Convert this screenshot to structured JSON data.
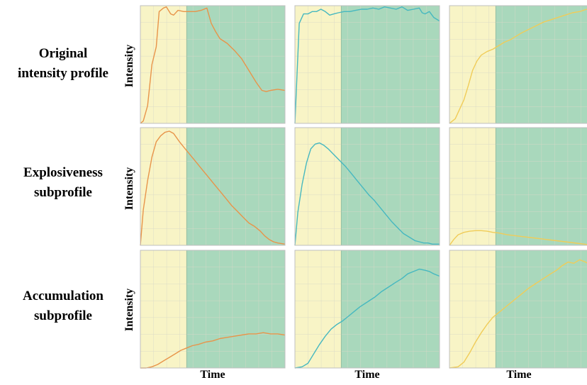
{
  "row_labels": [
    {
      "line1": "Original",
      "line2": "intensity profile"
    },
    {
      "line1": "Explosiveness",
      "line2": "subprofile"
    },
    {
      "line1": "Accumulation",
      "line2": "subprofile"
    }
  ],
  "ylabel": "Intensity",
  "xlabel": "Time",
  "colors": {
    "phase1_bg": "#f8f4c6",
    "phase2_bg": "#a9d8bc",
    "series": [
      "#e8944a",
      "#46b8c0",
      "#f0cc58"
    ],
    "frame": "#bfbfbf",
    "grid": "#d8d8c8"
  },
  "chart_data": [
    {
      "type": "line",
      "row": "Original intensity profile",
      "col": 1,
      "phase_boundary": 0.32,
      "x": [
        0,
        0.02,
        0.05,
        0.08,
        0.11,
        0.13,
        0.16,
        0.18,
        0.21,
        0.23,
        0.26,
        0.3,
        0.34,
        0.38,
        0.42,
        0.46,
        0.49,
        0.52,
        0.55,
        0.6,
        0.65,
        0.7,
        0.75,
        0.8,
        0.84,
        0.87,
        0.9,
        0.95,
        1
      ],
      "values": [
        0,
        0.02,
        0.15,
        0.5,
        0.65,
        0.95,
        0.98,
        0.99,
        0.93,
        0.92,
        0.96,
        0.95,
        0.95,
        0.95,
        0.96,
        0.98,
        0.85,
        0.78,
        0.72,
        0.68,
        0.62,
        0.55,
        0.45,
        0.35,
        0.28,
        0.27,
        0.28,
        0.29,
        0.28
      ],
      "ylim": [
        0,
        1
      ]
    },
    {
      "type": "line",
      "row": "Original intensity profile",
      "col": 2,
      "phase_boundary": 0.32,
      "x": [
        0,
        0.03,
        0.06,
        0.09,
        0.12,
        0.15,
        0.18,
        0.21,
        0.24,
        0.27,
        0.3,
        0.34,
        0.38,
        0.42,
        0.46,
        0.5,
        0.54,
        0.58,
        0.62,
        0.66,
        0.7,
        0.74,
        0.78,
        0.82,
        0.86,
        0.88,
        0.9,
        0.93,
        0.96,
        1
      ],
      "values": [
        0,
        0.85,
        0.93,
        0.93,
        0.95,
        0.95,
        0.97,
        0.95,
        0.92,
        0.93,
        0.94,
        0.95,
        0.95,
        0.96,
        0.97,
        0.97,
        0.98,
        0.97,
        0.99,
        0.98,
        0.97,
        0.99,
        0.96,
        0.97,
        0.98,
        0.94,
        0.93,
        0.95,
        0.9,
        0.87
      ],
      "ylim": [
        0,
        1
      ]
    },
    {
      "type": "line",
      "row": "Original intensity profile",
      "col": 3,
      "phase_boundary": 0.32,
      "x": [
        0,
        0.04,
        0.07,
        0.1,
        0.13,
        0.16,
        0.19,
        0.22,
        0.26,
        0.3,
        0.34,
        0.38,
        0.42,
        0.46,
        0.5,
        0.55,
        0.6,
        0.65,
        0.7,
        0.75,
        0.8,
        0.85,
        0.9,
        0.95,
        1
      ],
      "values": [
        0,
        0.04,
        0.12,
        0.2,
        0.32,
        0.45,
        0.53,
        0.58,
        0.61,
        0.63,
        0.66,
        0.69,
        0.71,
        0.74,
        0.77,
        0.8,
        0.83,
        0.86,
        0.88,
        0.9,
        0.92,
        0.94,
        0.95,
        0.97,
        0.98
      ],
      "ylim": [
        0,
        1
      ]
    },
    {
      "type": "line",
      "row": "Explosiveness subprofile",
      "col": 1,
      "phase_boundary": 0.32,
      "x": [
        0,
        0.02,
        0.05,
        0.08,
        0.11,
        0.14,
        0.17,
        0.2,
        0.23,
        0.27,
        0.31,
        0.35,
        0.39,
        0.43,
        0.47,
        0.51,
        0.55,
        0.59,
        0.63,
        0.67,
        0.71,
        0.75,
        0.79,
        0.83,
        0.86,
        0.89,
        0.92,
        0.95,
        1
      ],
      "values": [
        0,
        0.3,
        0.55,
        0.75,
        0.88,
        0.93,
        0.96,
        0.97,
        0.95,
        0.88,
        0.82,
        0.76,
        0.7,
        0.64,
        0.58,
        0.52,
        0.46,
        0.4,
        0.34,
        0.29,
        0.24,
        0.19,
        0.16,
        0.12,
        0.08,
        0.05,
        0.03,
        0.02,
        0.01
      ],
      "ylim": [
        0,
        1
      ]
    },
    {
      "type": "line",
      "row": "Explosiveness subprofile",
      "col": 2,
      "phase_boundary": 0.32,
      "x": [
        0,
        0.02,
        0.05,
        0.08,
        0.11,
        0.14,
        0.17,
        0.2,
        0.23,
        0.27,
        0.31,
        0.35,
        0.39,
        0.43,
        0.47,
        0.51,
        0.55,
        0.59,
        0.63,
        0.67,
        0.71,
        0.75,
        0.79,
        0.83,
        0.86,
        0.89,
        0.92,
        0.95,
        1
      ],
      "values": [
        0,
        0.28,
        0.52,
        0.7,
        0.82,
        0.86,
        0.87,
        0.85,
        0.82,
        0.77,
        0.72,
        0.67,
        0.61,
        0.55,
        0.49,
        0.43,
        0.38,
        0.32,
        0.26,
        0.2,
        0.15,
        0.1,
        0.07,
        0.04,
        0.03,
        0.02,
        0.02,
        0.01,
        0.01
      ],
      "ylim": [
        0,
        1
      ]
    },
    {
      "type": "line",
      "row": "Explosiveness subprofile",
      "col": 3,
      "phase_boundary": 0.32,
      "x": [
        0,
        0.03,
        0.06,
        0.1,
        0.14,
        0.18,
        0.22,
        0.26,
        0.3,
        0.34,
        0.4,
        0.5,
        0.6,
        0.7,
        0.8,
        0.9,
        1
      ],
      "values": [
        0,
        0.05,
        0.09,
        0.11,
        0.12,
        0.125,
        0.125,
        0.12,
        0.11,
        0.105,
        0.09,
        0.075,
        0.06,
        0.045,
        0.03,
        0.015,
        0.0
      ],
      "ylim": [
        0,
        1
      ]
    },
    {
      "type": "line",
      "row": "Accumulation subprofile",
      "col": 1,
      "phase_boundary": 0.32,
      "x": [
        0,
        0.04,
        0.08,
        0.12,
        0.16,
        0.2,
        0.24,
        0.28,
        0.32,
        0.36,
        0.4,
        0.45,
        0.5,
        0.55,
        0.6,
        0.65,
        0.7,
        0.75,
        0.8,
        0.85,
        0.9,
        0.95,
        1
      ],
      "values": [
        0,
        0.0,
        0.01,
        0.03,
        0.06,
        0.09,
        0.12,
        0.15,
        0.17,
        0.19,
        0.2,
        0.22,
        0.23,
        0.25,
        0.26,
        0.27,
        0.28,
        0.29,
        0.29,
        0.3,
        0.29,
        0.29,
        0.28
      ],
      "ylim": [
        0,
        1
      ]
    },
    {
      "type": "line",
      "row": "Accumulation subprofile",
      "col": 2,
      "phase_boundary": 0.32,
      "x": [
        0,
        0.05,
        0.09,
        0.13,
        0.17,
        0.21,
        0.25,
        0.29,
        0.33,
        0.37,
        0.41,
        0.45,
        0.5,
        0.55,
        0.6,
        0.65,
        0.7,
        0.74,
        0.78,
        0.82,
        0.86,
        0.9,
        0.93,
        0.96,
        1
      ],
      "values": [
        0,
        0.01,
        0.04,
        0.12,
        0.2,
        0.27,
        0.33,
        0.37,
        0.4,
        0.44,
        0.48,
        0.52,
        0.56,
        0.6,
        0.65,
        0.69,
        0.73,
        0.76,
        0.8,
        0.82,
        0.84,
        0.83,
        0.82,
        0.8,
        0.78
      ],
      "ylim": [
        0,
        1
      ]
    },
    {
      "type": "line",
      "row": "Accumulation subprofile",
      "col": 3,
      "phase_boundary": 0.32,
      "x": [
        0,
        0.06,
        0.1,
        0.14,
        0.18,
        0.22,
        0.26,
        0.3,
        0.35,
        0.4,
        0.45,
        0.5,
        0.55,
        0.6,
        0.65,
        0.7,
        0.74,
        0.78,
        0.82,
        0.86,
        0.9,
        0.94,
        0.97,
        1
      ],
      "values": [
        0,
        0.01,
        0.05,
        0.13,
        0.22,
        0.3,
        0.37,
        0.43,
        0.48,
        0.53,
        0.58,
        0.63,
        0.68,
        0.72,
        0.76,
        0.8,
        0.83,
        0.87,
        0.9,
        0.89,
        0.92,
        0.9,
        0.88,
        0.87
      ],
      "ylim": [
        0,
        1
      ]
    }
  ]
}
